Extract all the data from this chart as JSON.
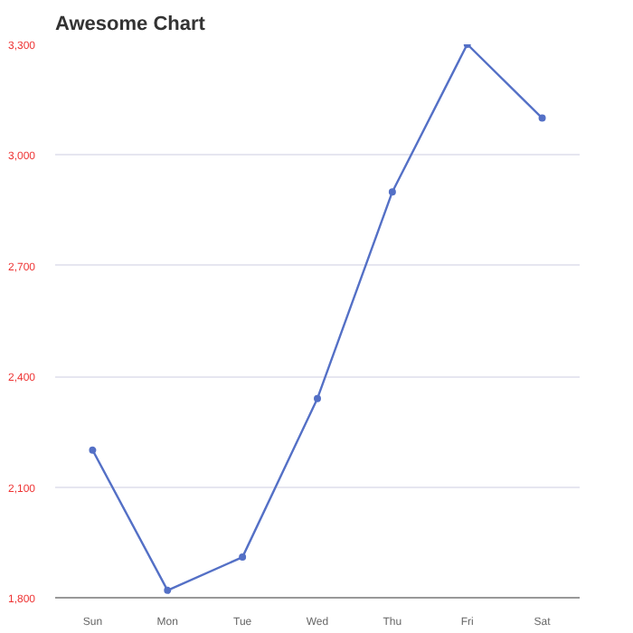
{
  "chart_data": {
    "type": "line",
    "title": "Awesome Chart",
    "categories": [
      "Sun",
      "Mon",
      "Tue",
      "Wed",
      "Thu",
      "Fri",
      "Sat"
    ],
    "series": [
      {
        "color": "#5470c6",
        "values": [
          2200,
          1820,
          1910,
          2340,
          2900,
          3300,
          3100
        ]
      }
    ],
    "ylim": [
      1800,
      3300
    ],
    "yticks": [
      {
        "value": 1800,
        "label": "1,800"
      },
      {
        "value": 2100,
        "label": "2,100"
      },
      {
        "value": 2400,
        "label": "2,400"
      },
      {
        "value": 2700,
        "label": "2,700"
      },
      {
        "value": 3000,
        "label": "3,000"
      },
      {
        "value": 3300,
        "label": "3,300"
      }
    ],
    "grid": "y",
    "marker": "circle",
    "line_style": "solid"
  }
}
